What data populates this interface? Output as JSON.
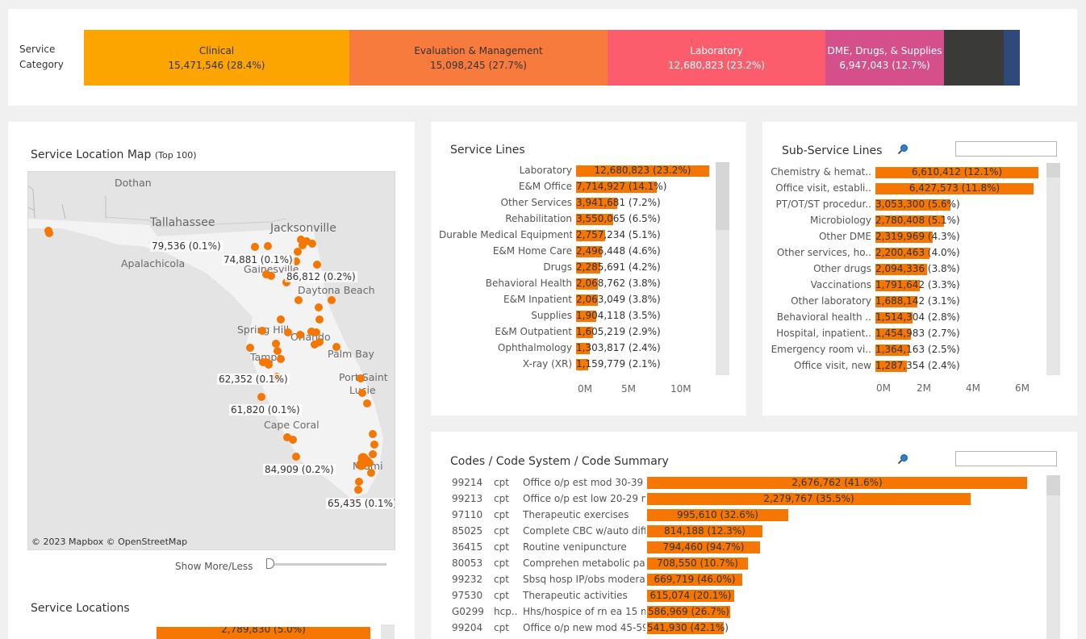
{
  "category": {
    "label_line1": "Service",
    "label_line2": "Category",
    "items": [
      {
        "name": "Clinical",
        "value": "15,471,546 (28.4%)",
        "color": "#fca500",
        "text": "#333333"
      },
      {
        "name": "Evaluation & Management",
        "value": "15,098,245 (27.7%)",
        "color": "#f77b3c",
        "text": "#333333"
      },
      {
        "name": "Laboratory",
        "value": "12,680,823 (23.2%)",
        "color": "#fc5d6d",
        "text": "#ffffff"
      },
      {
        "name": "DME, Drugs, & Supplies",
        "value": "6,947,043 (12.7%)",
        "color": "#d5508a",
        "text": "#ffffff"
      },
      {
        "name": "",
        "value": "",
        "color": "#3a3b39",
        "text": "#ffffff"
      },
      {
        "name": "",
        "value": "",
        "color": "#2f4a7a",
        "text": "#ffffff"
      }
    ]
  },
  "map_panel": {
    "title": "Service Location Map",
    "title_suffix": "(Top 100)",
    "cities": [
      "Dothan",
      "Tallahassee",
      "Jacksonville",
      "Apalachicola",
      "Gainesville",
      "Daytona Beach",
      "Spring Hill",
      "Tampa",
      "Orlando",
      "Palm Bay",
      "Port Saint",
      "Lucie",
      "Cape Coral",
      "Miami"
    ],
    "labels": [
      "79,536 (0.1%)",
      "74,881 (0.1%)",
      "86,812 (0.2%)",
      "62,352 (0.1%)",
      "61,820 (0.1%)",
      "84,909 (0.2%)",
      "65,435 (0.1%)"
    ],
    "credit": "© 2023 Mapbox  © OpenStreetMap",
    "show_more": "Show More/Less",
    "locations_title": "Service Locations",
    "locations_first_value": "2,789,830 (5.0%)"
  },
  "service_lines": {
    "title": "Service Lines",
    "rows": [
      {
        "label": "Laboratory",
        "value": "12,680,823 (23.2%)",
        "n": 12680823
      },
      {
        "label": "E&M Office",
        "value": "7,714,927 (14.1%)",
        "n": 7714927
      },
      {
        "label": "Other Services",
        "value": "3,941,681 (7.2%)",
        "n": 3941681
      },
      {
        "label": "Rehabilitation",
        "value": "3,550,065 (6.5%)",
        "n": 3550065
      },
      {
        "label": "Durable Medical Equipment",
        "value": "2,757,234 (5.1%)",
        "n": 2757234
      },
      {
        "label": "E&M Home Care",
        "value": "2,496,448 (4.6%)",
        "n": 2496448
      },
      {
        "label": "Drugs",
        "value": "2,285,691 (4.2%)",
        "n": 2285691
      },
      {
        "label": "Behavioral Health",
        "value": "2,068,762 (3.8%)",
        "n": 2068762
      },
      {
        "label": "E&M Inpatient",
        "value": "2,063,049 (3.8%)",
        "n": 2063049
      },
      {
        "label": "Supplies",
        "value": "1,904,118 (3.5%)",
        "n": 1904118
      },
      {
        "label": "E&M Outpatient",
        "value": "1,605,219 (2.9%)",
        "n": 1605219
      },
      {
        "label": "Ophthalmology",
        "value": "1,303,817 (2.4%)",
        "n": 1303817
      },
      {
        "label": "X-ray (XR)",
        "value": "1,159,779 (2.1%)",
        "n": 1159779
      }
    ],
    "axis": [
      "0M",
      "5M",
      "10M"
    ]
  },
  "sub_service_lines": {
    "title": "Sub-Service Lines",
    "rows": [
      {
        "label": "Chemistry & hemat..",
        "value": "6,610,412 (12.1%)",
        "n": 6610412
      },
      {
        "label": "Office visit, establi..",
        "value": "6,427,573 (11.8%)",
        "n": 6427573
      },
      {
        "label": "PT/OT/ST procedur..",
        "value": "3,053,300 (5.6%)",
        "n": 3053300
      },
      {
        "label": "Microbiology",
        "value": "2,780,408 (5.1%)",
        "n": 2780408
      },
      {
        "label": "Other DME",
        "value": "2,319,969 (4.3%)",
        "n": 2319969
      },
      {
        "label": "Other services, ho..",
        "value": "2,200,463 (4.0%)",
        "n": 2200463
      },
      {
        "label": "Other drugs",
        "value": "2,094,336 (3.8%)",
        "n": 2094336
      },
      {
        "label": "Vaccinations",
        "value": "1,791,642 (3.3%)",
        "n": 1791642
      },
      {
        "label": "Other laboratory",
        "value": "1,688,142 (3.1%)",
        "n": 1688142
      },
      {
        "label": "Behavioral health ..",
        "value": "1,514,304 (2.8%)",
        "n": 1514304
      },
      {
        "label": "Hospital, inpatient..",
        "value": "1,454,983 (2.7%)",
        "n": 1454983
      },
      {
        "label": "Emergency room vi..",
        "value": "1,364,163 (2.5%)",
        "n": 1364163
      },
      {
        "label": "Office visit, new",
        "value": "1,287,354 (2.4%)",
        "n": 1287354
      }
    ],
    "axis": [
      "0M",
      "2M",
      "4M",
      "6M"
    ]
  },
  "codes": {
    "title": "Codes / Code System / Code Summary",
    "rows": [
      {
        "code": "99214",
        "system": "cpt",
        "summary": "Office o/p est mod 30-39 ..",
        "value": "2,676,762 (41.6%)",
        "n": 2676762
      },
      {
        "code": "99213",
        "system": "cpt",
        "summary": "Office o/p est low 20-29 m..",
        "value": "2,279,767 (35.5%)",
        "n": 2279767
      },
      {
        "code": "97110",
        "system": "cpt",
        "summary": "Therapeutic exercises",
        "value": "995,610 (32.6%)",
        "n": 995610
      },
      {
        "code": "85025",
        "system": "cpt",
        "summary": "Complete CBC w/auto diff ..",
        "value": "814,188 (12.3%)",
        "n": 814188
      },
      {
        "code": "36415",
        "system": "cpt",
        "summary": "Routine venipuncture",
        "value": "794,460 (94.7%)",
        "n": 794460
      },
      {
        "code": "80053",
        "system": "cpt",
        "summary": "Comprehen metabolic pan..",
        "value": "708,550 (10.7%)",
        "n": 708550
      },
      {
        "code": "99232",
        "system": "cpt",
        "summary": "Sbsq hosp IP/obs moderat..",
        "value": "669,719 (46.0%)",
        "n": 669719
      },
      {
        "code": "97530",
        "system": "cpt",
        "summary": "Therapeutic activities",
        "value": "615,074 (20.1%)",
        "n": 615074
      },
      {
        "code": "G0299",
        "system": "hcp..",
        "summary": "Hhs/hospice of rn ea 15 m..",
        "value": "586,969 (26.7%)",
        "n": 586969
      },
      {
        "code": "99204",
        "system": "cpt",
        "summary": "Office o/p new mod 45-59 ..",
        "value": "541,930 (42.1%)",
        "n": 541930
      }
    ]
  }
}
